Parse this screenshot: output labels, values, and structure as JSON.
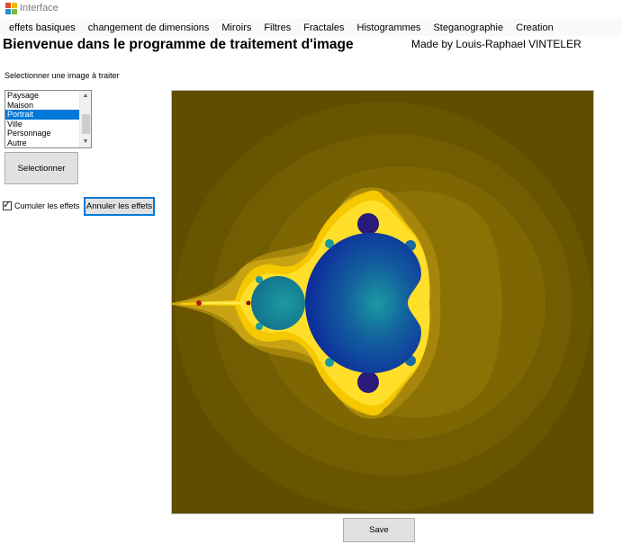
{
  "window": {
    "title": "Interface"
  },
  "menu": [
    "effets basiques",
    "changement de dimensions",
    "Miroirs",
    "Filtres",
    "Fractales",
    "Histogrammes",
    "Steganographie",
    "Creation"
  ],
  "heading": "Bienvenue dans le programme de traitement d'image",
  "credit": "Made by Louis-Raphael VINTELER",
  "image_picker": {
    "label": "Selectionner une image à traiter",
    "options": [
      "Paysage",
      "Maison",
      "Portrait",
      "Ville",
      "Personnage",
      "Autre"
    ],
    "selected": "Portrait",
    "select_button": "Selectionner"
  },
  "effects": {
    "cumulate_label": "Cumuler les effets",
    "cumulate_checked": true,
    "cancel_button": "Annuler les effets"
  },
  "save_button": "Save",
  "colors": {
    "fractal_background": "#5f4d00",
    "fractal_gold": "#f5c800",
    "fractal_bright": "#ffe94a",
    "fractal_body": "#0d2d9c",
    "fractal_teal": "#1a9ba0",
    "fractal_bud": "#2a1a7a",
    "selection": "#0078d7"
  }
}
